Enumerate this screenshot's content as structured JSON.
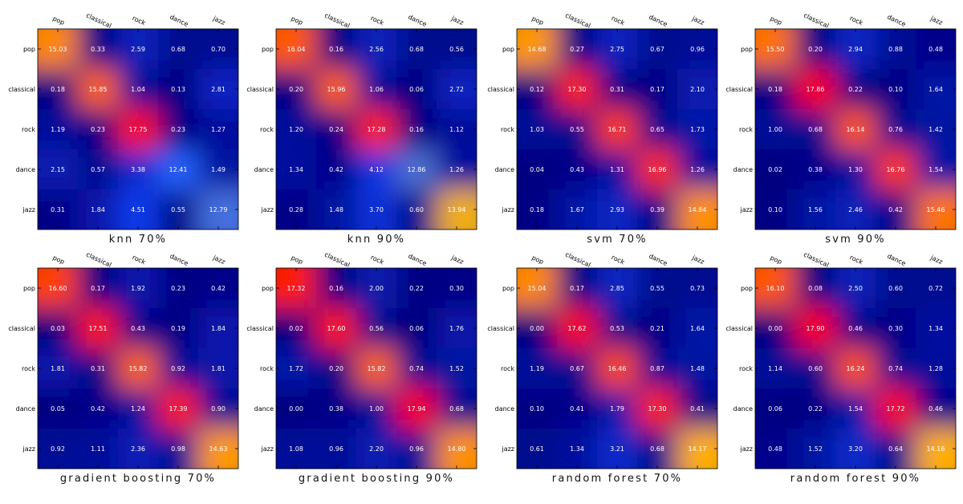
{
  "labels": [
    "pop",
    "classical",
    "rock",
    "dance",
    "jazz"
  ],
  "colors": {
    "scale_low": "#00007f",
    "scale_mid": "#1446ff",
    "scale_warm": "#ffb400",
    "scale_high": "#ff0000",
    "text": "#ffffff",
    "frame": "#000000"
  },
  "chart_data": [
    {
      "type": "heatmap",
      "title": "knn 70%",
      "rows": [
        "pop",
        "classical",
        "rock",
        "dance",
        "jazz"
      ],
      "cols": [
        "pop",
        "classical",
        "rock",
        "dance",
        "jazz"
      ],
      "values": [
        [
          15.03,
          0.33,
          2.59,
          0.68,
          0.7
        ],
        [
          0.18,
          15.85,
          1.04,
          0.13,
          2.81
        ],
        [
          1.19,
          0.23,
          17.75,
          0.23,
          1.27
        ],
        [
          2.15,
          0.57,
          3.38,
          12.41,
          1.49
        ],
        [
          0.31,
          1.84,
          4.51,
          0.55,
          12.79
        ]
      ]
    },
    {
      "type": "heatmap",
      "title": "knn 90%",
      "rows": [
        "pop",
        "classical",
        "rock",
        "dance",
        "jazz"
      ],
      "cols": [
        "pop",
        "classical",
        "rock",
        "dance",
        "jazz"
      ],
      "values": [
        [
          16.04,
          0.16,
          2.56,
          0.68,
          0.56
        ],
        [
          0.2,
          15.96,
          1.06,
          0.06,
          2.72
        ],
        [
          1.2,
          0.24,
          17.28,
          0.16,
          1.12
        ],
        [
          1.34,
          0.42,
          4.12,
          12.86,
          1.26
        ],
        [
          0.28,
          1.48,
          3.7,
          0.6,
          13.94
        ]
      ]
    },
    {
      "type": "heatmap",
      "title": "svm 70%",
      "rows": [
        "pop",
        "classical",
        "rock",
        "dance",
        "jazz"
      ],
      "cols": [
        "pop",
        "classical",
        "rock",
        "dance",
        "jazz"
      ],
      "values": [
        [
          14.68,
          0.27,
          2.75,
          0.67,
          0.96
        ],
        [
          0.12,
          17.3,
          0.31,
          0.17,
          2.1
        ],
        [
          1.03,
          0.55,
          16.71,
          0.65,
          1.73
        ],
        [
          0.04,
          0.43,
          1.31,
          16.96,
          1.26
        ],
        [
          0.18,
          1.67,
          2.93,
          0.39,
          14.84
        ]
      ]
    },
    {
      "type": "heatmap",
      "title": "svm 90%",
      "rows": [
        "pop",
        "classical",
        "rock",
        "dance",
        "jazz"
      ],
      "cols": [
        "pop",
        "classical",
        "rock",
        "dance",
        "jazz"
      ],
      "values": [
        [
          15.5,
          0.2,
          2.94,
          0.88,
          0.48
        ],
        [
          0.18,
          17.86,
          0.22,
          0.1,
          1.64
        ],
        [
          1.0,
          0.68,
          16.14,
          0.76,
          1.42
        ],
        [
          0.02,
          0.38,
          1.3,
          16.76,
          1.54
        ],
        [
          0.1,
          1.56,
          2.46,
          0.42,
          15.46
        ]
      ]
    },
    {
      "type": "heatmap",
      "title": "gradient boosting 70%",
      "rows": [
        "pop",
        "classical",
        "rock",
        "dance",
        "jazz"
      ],
      "cols": [
        "pop",
        "classical",
        "rock",
        "dance",
        "jazz"
      ],
      "values": [
        [
          16.6,
          0.17,
          1.92,
          0.23,
          0.42
        ],
        [
          0.03,
          17.51,
          0.43,
          0.19,
          1.84
        ],
        [
          1.81,
          0.31,
          15.82,
          0.92,
          1.81
        ],
        [
          0.05,
          0.42,
          1.24,
          17.39,
          0.9
        ],
        [
          0.92,
          1.11,
          2.36,
          0.98,
          14.63
        ]
      ]
    },
    {
      "type": "heatmap",
      "title": "gradient boosting 90%",
      "rows": [
        "pop",
        "classical",
        "rock",
        "dance",
        "jazz"
      ],
      "cols": [
        "pop",
        "classical",
        "rock",
        "dance",
        "jazz"
      ],
      "values": [
        [
          17.32,
          0.16,
          2.0,
          0.22,
          0.3
        ],
        [
          0.02,
          17.6,
          0.56,
          0.06,
          1.76
        ],
        [
          1.72,
          0.2,
          15.82,
          0.74,
          1.52
        ],
        [
          0.0,
          0.38,
          1.0,
          17.94,
          0.68
        ],
        [
          1.08,
          0.96,
          2.2,
          0.96,
          14.8
        ]
      ]
    },
    {
      "type": "heatmap",
      "title": "random forest 70%",
      "rows": [
        "pop",
        "classical",
        "rock",
        "dance",
        "jazz"
      ],
      "cols": [
        "pop",
        "classical",
        "rock",
        "dance",
        "jazz"
      ],
      "values": [
        [
          15.04,
          0.17,
          2.85,
          0.55,
          0.73
        ],
        [
          0.0,
          17.62,
          0.53,
          0.21,
          1.64
        ],
        [
          1.19,
          0.67,
          16.46,
          0.87,
          1.48
        ],
        [
          0.1,
          0.41,
          1.79,
          17.3,
          0.41
        ],
        [
          0.61,
          1.34,
          3.21,
          0.68,
          14.17
        ]
      ]
    },
    {
      "type": "heatmap",
      "title": "random forest 90%",
      "rows": [
        "pop",
        "classical",
        "rock",
        "dance",
        "jazz"
      ],
      "cols": [
        "pop",
        "classical",
        "rock",
        "dance",
        "jazz"
      ],
      "values": [
        [
          16.1,
          0.08,
          2.5,
          0.6,
          0.72
        ],
        [
          0.0,
          17.9,
          0.46,
          0.3,
          1.34
        ],
        [
          1.14,
          0.6,
          16.24,
          0.74,
          1.28
        ],
        [
          0.06,
          0.22,
          1.54,
          17.72,
          0.46
        ],
        [
          0.48,
          1.52,
          3.2,
          0.64,
          14.16
        ]
      ]
    }
  ]
}
